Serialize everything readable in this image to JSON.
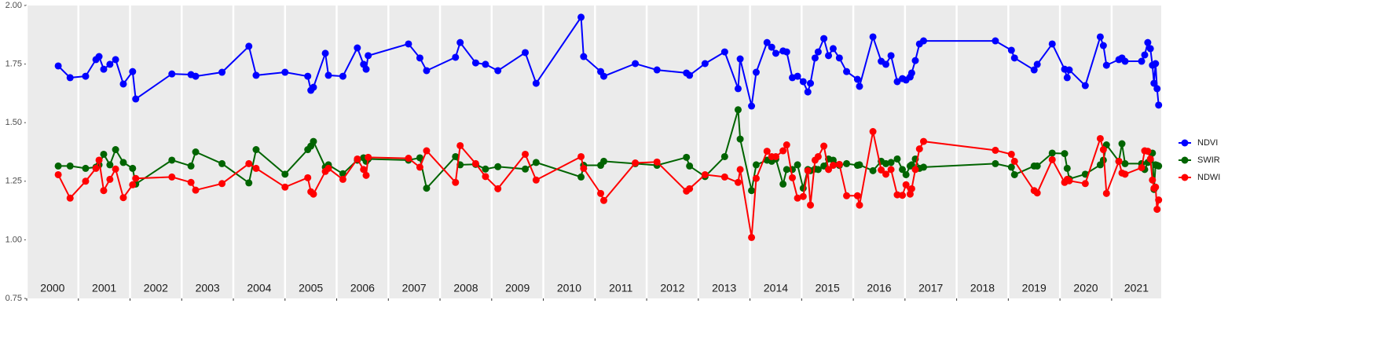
{
  "chart_data": {
    "type": "line",
    "x": [
      2000.61,
      2000.84,
      2001.14,
      2001.34,
      2001.4,
      2001.49,
      2001.61,
      2001.72,
      2001.87,
      2002.05,
      2002.11,
      2002.81,
      2003.18,
      2003.27,
      2003.78,
      2004.3,
      2004.44,
      2005.0,
      2005.44,
      2005.5,
      2005.55,
      2005.78,
      2005.84,
      2006.12,
      2006.4,
      2006.52,
      2006.57,
      2006.61,
      2007.39,
      2007.61,
      2007.74,
      2008.3,
      2008.39,
      2008.69,
      2008.88,
      2009.12,
      2009.65,
      2009.86,
      2010.73,
      2010.78,
      2011.11,
      2011.17,
      2011.78,
      2012.2,
      2012.77,
      2012.83,
      2013.13,
      2013.51,
      2013.77,
      2013.81,
      2014.03,
      2014.12,
      2014.33,
      2014.42,
      2014.5,
      2014.64,
      2014.71,
      2014.82,
      2014.92,
      2015.03,
      2015.12,
      2015.17,
      2015.26,
      2015.32,
      2015.43,
      2015.52,
      2015.61,
      2015.73,
      2015.87,
      2016.08,
      2016.12,
      2016.38,
      2016.54,
      2016.63,
      2016.73,
      2016.85,
      2016.95,
      2017.02,
      2017.1,
      2017.13,
      2017.2,
      2017.28,
      2017.36,
      2018.75,
      2019.06,
      2019.12,
      2019.5,
      2019.56,
      2019.85,
      2020.09,
      2020.14,
      2020.18,
      2020.49,
      2020.78,
      2020.84,
      2020.9,
      2021.14,
      2021.2,
      2021.26,
      2021.58,
      2021.64,
      2021.7,
      2021.75,
      2021.79,
      2021.82,
      2021.85,
      2021.88,
      2021.91
    ],
    "series": [
      {
        "name": "NDVI",
        "color": "#0000ff",
        "values": [
          1.742,
          1.692,
          1.698,
          1.769,
          1.782,
          1.728,
          1.749,
          1.769,
          1.665,
          1.718,
          1.601,
          1.708,
          1.705,
          1.698,
          1.715,
          1.826,
          1.702,
          1.715,
          1.698,
          1.638,
          1.651,
          1.796,
          1.702,
          1.698,
          1.819,
          1.749,
          1.728,
          1.786,
          1.836,
          1.776,
          1.722,
          1.779,
          1.842,
          1.755,
          1.749,
          1.722,
          1.799,
          1.668,
          1.95,
          1.782,
          1.718,
          1.698,
          1.752,
          1.725,
          1.712,
          1.702,
          1.752,
          1.802,
          1.645,
          1.772,
          1.571,
          1.715,
          1.842,
          1.822,
          1.796,
          1.806,
          1.802,
          1.692,
          1.698,
          1.675,
          1.631,
          1.668,
          1.776,
          1.802,
          1.859,
          1.786,
          1.816,
          1.776,
          1.718,
          1.685,
          1.655,
          1.866,
          1.762,
          1.749,
          1.786,
          1.675,
          1.688,
          1.682,
          1.695,
          1.712,
          1.765,
          1.836,
          1.849,
          1.849,
          1.809,
          1.776,
          1.725,
          1.749,
          1.836,
          1.728,
          1.692,
          1.725,
          1.658,
          1.866,
          1.829,
          1.745,
          1.769,
          1.776,
          1.762,
          1.762,
          1.789,
          1.842,
          1.816,
          1.745,
          1.668,
          1.752,
          1.645,
          1.575
        ]
      },
      {
        "name": "SWIR",
        "color": "#006400",
        "values": [
          1.315,
          1.315,
          1.305,
          1.31,
          1.32,
          1.365,
          1.32,
          1.385,
          1.33,
          1.305,
          1.238,
          1.34,
          1.315,
          1.375,
          1.325,
          1.243,
          1.385,
          1.28,
          1.385,
          1.4,
          1.42,
          1.31,
          1.32,
          1.282,
          1.34,
          1.35,
          1.335,
          1.345,
          1.34,
          1.35,
          1.22,
          1.355,
          1.32,
          1.322,
          1.302,
          1.312,
          1.302,
          1.33,
          1.268,
          1.318,
          1.318,
          1.335,
          1.325,
          1.318,
          1.352,
          1.315,
          1.27,
          1.355,
          1.555,
          1.43,
          1.21,
          1.32,
          1.34,
          1.335,
          1.345,
          1.238,
          1.3,
          1.3,
          1.32,
          1.22,
          1.3,
          1.295,
          1.302,
          1.3,
          1.315,
          1.345,
          1.34,
          1.318,
          1.325,
          1.318,
          1.32,
          1.295,
          1.335,
          1.325,
          1.33,
          1.345,
          1.3,
          1.278,
          1.315,
          1.32,
          1.345,
          1.305,
          1.31,
          1.325,
          1.31,
          1.278,
          1.315,
          1.315,
          1.37,
          1.368,
          1.305,
          1.26,
          1.28,
          1.32,
          1.34,
          1.405,
          1.335,
          1.41,
          1.325,
          1.325,
          1.3,
          1.33,
          1.34,
          1.37,
          1.215,
          1.32,
          1.318,
          1.315
        ]
      },
      {
        "name": "NDWI",
        "color": "#ff0000",
        "values": [
          1.278,
          1.178,
          1.25,
          1.305,
          1.34,
          1.21,
          1.258,
          1.302,
          1.18,
          1.235,
          1.262,
          1.268,
          1.245,
          1.212,
          1.24,
          1.325,
          1.305,
          1.225,
          1.265,
          1.205,
          1.195,
          1.292,
          1.305,
          1.258,
          1.345,
          1.3,
          1.275,
          1.352,
          1.348,
          1.31,
          1.38,
          1.245,
          1.402,
          1.325,
          1.27,
          1.218,
          1.365,
          1.255,
          1.355,
          1.305,
          1.198,
          1.168,
          1.328,
          1.332,
          1.208,
          1.218,
          1.278,
          1.268,
          1.245,
          1.3,
          1.01,
          1.262,
          1.378,
          1.355,
          1.355,
          1.38,
          1.405,
          1.265,
          1.178,
          1.185,
          1.295,
          1.148,
          1.34,
          1.355,
          1.4,
          1.3,
          1.318,
          1.322,
          1.188,
          1.188,
          1.148,
          1.462,
          1.298,
          1.28,
          1.3,
          1.192,
          1.19,
          1.235,
          1.195,
          1.218,
          1.3,
          1.388,
          1.42,
          1.382,
          1.365,
          1.335,
          1.21,
          1.2,
          1.342,
          1.245,
          1.258,
          1.252,
          1.24,
          1.432,
          1.385,
          1.198,
          1.335,
          1.285,
          1.28,
          1.308,
          1.38,
          1.378,
          1.345,
          1.255,
          1.22,
          1.225,
          1.13,
          1.17
        ]
      }
    ],
    "xlim": [
      2000,
      2021.96
    ],
    "xticks": [
      2000,
      2001,
      2002,
      2003,
      2004,
      2005,
      2006,
      2007,
      2008,
      2009,
      2010,
      2011,
      2012,
      2013,
      2014,
      2015,
      2016,
      2017,
      2018,
      2019,
      2020,
      2021
    ],
    "year_labels": [
      "2000",
      "2001",
      "2002",
      "2003",
      "2004",
      "2005",
      "2006",
      "2007",
      "2008",
      "2009",
      "2010",
      "2011",
      "2012",
      "2013",
      "2014",
      "2015",
      "2016",
      "2017",
      "2018",
      "2019",
      "2020",
      "2021"
    ],
    "ylim": [
      0.75,
      2.0
    ],
    "yticks": [
      {
        "value": 0.75,
        "label": "0.75"
      },
      {
        "value": 1.0,
        "label": "1.00"
      },
      {
        "value": 1.25,
        "label": "1.25"
      },
      {
        "value": 1.5,
        "label": "1.50"
      },
      {
        "value": 1.75,
        "label": "1.75"
      },
      {
        "value": 2.0,
        "label": "2.00"
      }
    ],
    "grid": "x",
    "legend": "right"
  }
}
